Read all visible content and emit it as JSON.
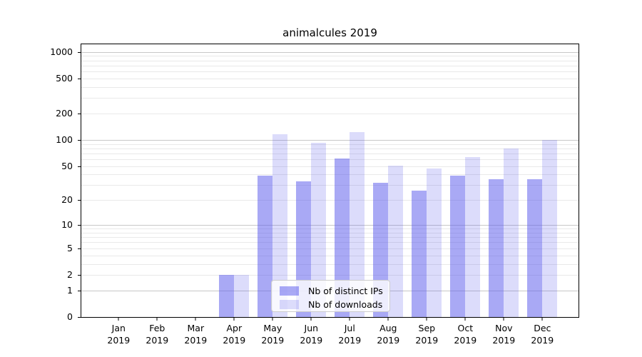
{
  "chart_data": {
    "type": "bar",
    "title": "animalcules 2019",
    "categories": [
      "Jan 2019",
      "Feb 2019",
      "Mar 2019",
      "Apr 2019",
      "May 2019",
      "Jun 2019",
      "Jul 2019",
      "Aug 2019",
      "Sep 2019",
      "Oct 2019",
      "Nov 2019",
      "Dec 2019"
    ],
    "months": [
      "Jan",
      "Feb",
      "Mar",
      "Apr",
      "May",
      "Jun",
      "Jul",
      "Aug",
      "Sep",
      "Oct",
      "Nov",
      "Dec"
    ],
    "year": "2019",
    "series": [
      {
        "name": "Nb of distinct IPs",
        "color": "rgba(90,90,235,0.52)",
        "values": [
          0,
          0,
          0,
          2,
          39,
          33,
          61,
          32,
          26,
          39,
          35,
          35
        ]
      },
      {
        "name": "Nb of downloads",
        "color": "rgba(90,90,235,0.21)",
        "values": [
          0,
          0,
          0,
          2,
          115,
          93,
          122,
          51,
          47,
          64,
          79,
          100
        ]
      }
    ],
    "xlabel": "",
    "ylabel": "",
    "y_ticks": [
      0,
      1,
      2,
      5,
      10,
      20,
      50,
      100,
      200,
      500,
      1000
    ],
    "y_scale": "log10(value+1)",
    "ylim": [
      0,
      1250
    ],
    "grid": {
      "minor_color": "#e9e9e9",
      "major_color": "#c8c8c8",
      "major_at": [
        1,
        10,
        100,
        1000
      ]
    },
    "legend_position": "bottom-center-inside"
  }
}
